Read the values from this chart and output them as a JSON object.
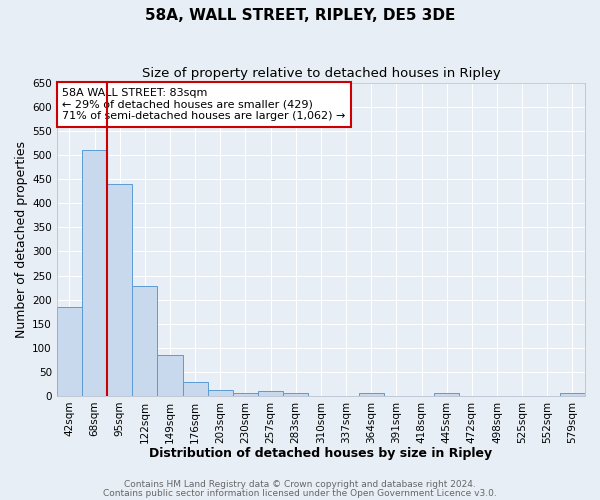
{
  "title": "58A, WALL STREET, RIPLEY, DE5 3DE",
  "subtitle": "Size of property relative to detached houses in Ripley",
  "xlabel": "Distribution of detached houses by size in Ripley",
  "ylabel": "Number of detached properties",
  "bar_labels": [
    "42sqm",
    "68sqm",
    "95sqm",
    "122sqm",
    "149sqm",
    "176sqm",
    "203sqm",
    "230sqm",
    "257sqm",
    "283sqm",
    "310sqm",
    "337sqm",
    "364sqm",
    "391sqm",
    "418sqm",
    "445sqm",
    "472sqm",
    "498sqm",
    "525sqm",
    "552sqm",
    "579sqm"
  ],
  "bar_values": [
    185,
    510,
    440,
    228,
    84,
    28,
    13,
    5,
    10,
    5,
    0,
    0,
    5,
    0,
    0,
    5,
    0,
    0,
    0,
    0,
    5
  ],
  "bar_color": "#c8d9ed",
  "bar_edge_color": "#5b9bd5",
  "vline_color": "#cc0000",
  "annotation_title": "58A WALL STREET: 83sqm",
  "annotation_line1": "← 29% of detached houses are smaller (429)",
  "annotation_line2": "71% of semi-detached houses are larger (1,062) →",
  "annotation_box_color": "#ffffff",
  "annotation_box_edge": "#cc0000",
  "ylim": [
    0,
    650
  ],
  "yticks": [
    0,
    50,
    100,
    150,
    200,
    250,
    300,
    350,
    400,
    450,
    500,
    550,
    600,
    650
  ],
  "footer1": "Contains HM Land Registry data © Crown copyright and database right 2024.",
  "footer2": "Contains public sector information licensed under the Open Government Licence v3.0.",
  "background_color": "#e8eef5",
  "plot_bg_color": "#e8eef5",
  "title_fontsize": 11,
  "subtitle_fontsize": 9.5,
  "axis_label_fontsize": 9,
  "tick_fontsize": 7.5,
  "annotation_fontsize": 8,
  "footer_fontsize": 6.5
}
